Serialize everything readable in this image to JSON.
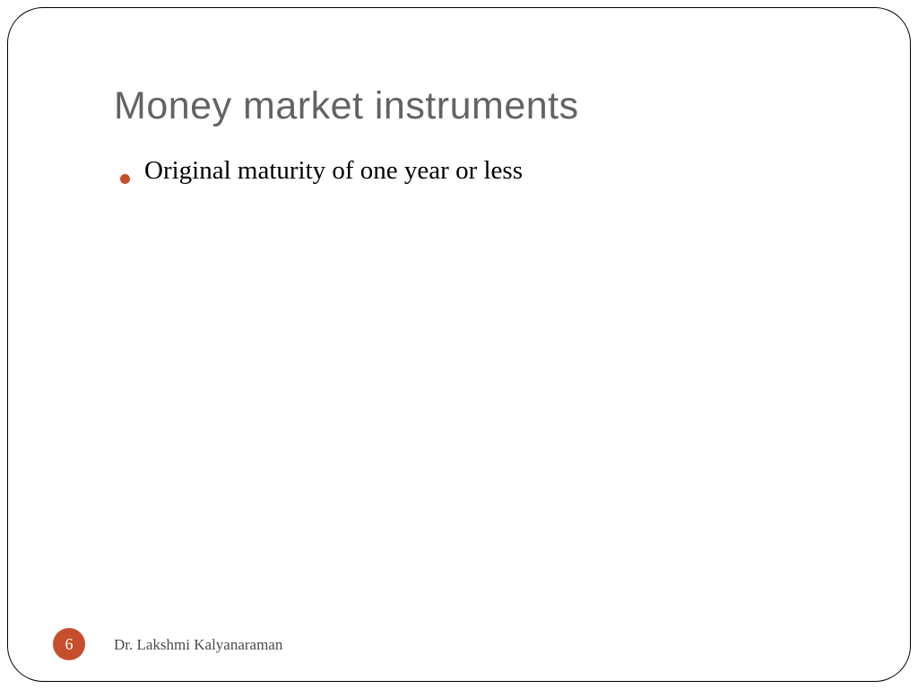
{
  "slide": {
    "title": "Money market instruments",
    "title_color": "#636363",
    "title_fontsize": 43,
    "bullets": [
      {
        "text": "Original maturity of one year or less"
      }
    ],
    "bullet_color": "#c74e2d",
    "bullet_text_color": "#000000",
    "bullet_fontsize": 29,
    "slide_number": "6",
    "slide_number_bg": "#c74e2d",
    "slide_number_color": "#ffffff",
    "author": "Dr. Lakshmi Kalyanaraman",
    "author_color": "#4a4a4a",
    "author_fontsize": 17,
    "frame_border_color": "#000000",
    "frame_border_radius": 40,
    "background_color": "#ffffff"
  }
}
